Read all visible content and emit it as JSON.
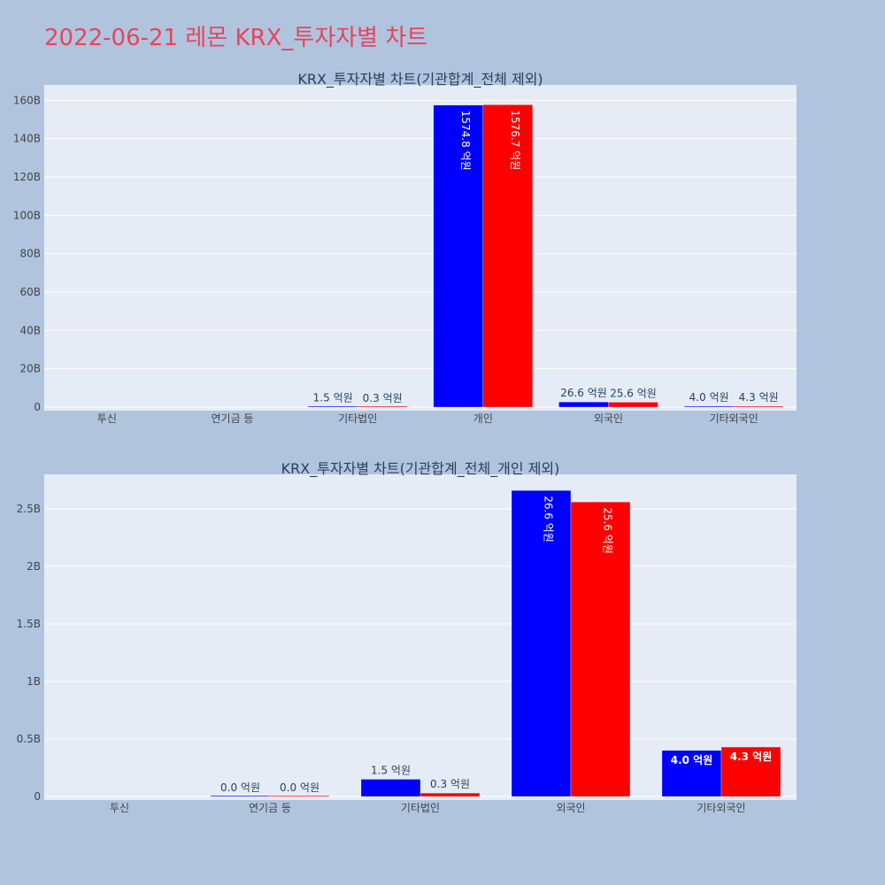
{
  "title": "2022-06-21 레몬 KRX_투자자별 차트",
  "colors": {
    "background": "#b0c4de",
    "plot": "#e5ecf6",
    "buy": "#0000ff",
    "sell": "#ff0000",
    "title": "#e8445a"
  },
  "chart_data": [
    {
      "type": "bar",
      "title": "KRX_투자자별 차트(기관합계_전체 제외)",
      "categories": [
        "투신",
        "연기금 등",
        "기타법인",
        "개인",
        "외국인",
        "기타외국인"
      ],
      "ylim": [
        0,
        168000000000
      ],
      "yticks": [
        0,
        20000000000,
        40000000000,
        60000000000,
        80000000000,
        100000000000,
        120000000000,
        140000000000,
        160000000000
      ],
      "ytick_labels": [
        "0",
        "20B",
        "40B",
        "60B",
        "80B",
        "100B",
        "120B",
        "140B",
        "160B"
      ],
      "grid": true,
      "series": [
        {
          "values": [
            null,
            null,
            150000000,
            157480000000,
            2660000000,
            400000000
          ],
          "labels": [
            "",
            "",
            "1.5 억원",
            "1574.8 억원",
            "26.6 억원",
            "4.0 억원"
          ]
        },
        {
          "values": [
            null,
            null,
            30000000,
            157670000000,
            2560000000,
            430000000
          ],
          "labels": [
            "",
            "",
            "0.3 억원",
            "1576.7 억원",
            "25.6 억원",
            "4.3 억원"
          ]
        }
      ]
    },
    {
      "type": "bar",
      "title": "KRX_투자자별 차트(기관합계_전체_개인 제외)",
      "categories": [
        "투신",
        "연기금 등",
        "기타법인",
        "외국인",
        "기타외국인"
      ],
      "ylim": [
        0,
        2800000000
      ],
      "yticks": [
        0,
        500000000,
        1000000000,
        1500000000,
        2000000000,
        2500000000
      ],
      "ytick_labels": [
        "0",
        "0.5B",
        "1B",
        "1.5B",
        "2B",
        "2.5B"
      ],
      "grid": true,
      "series": [
        {
          "values": [
            null,
            0,
            150000000,
            2660000000,
            400000000
          ],
          "labels": [
            "",
            "0.0 억원",
            "1.5 억원",
            "26.6 억원",
            "4.0 억원"
          ]
        },
        {
          "values": [
            null,
            0,
            30000000,
            2560000000,
            430000000
          ],
          "labels": [
            "",
            "0.0 억원",
            "0.3 억원",
            "25.6 억원",
            "4.3 억원"
          ]
        }
      ]
    }
  ]
}
